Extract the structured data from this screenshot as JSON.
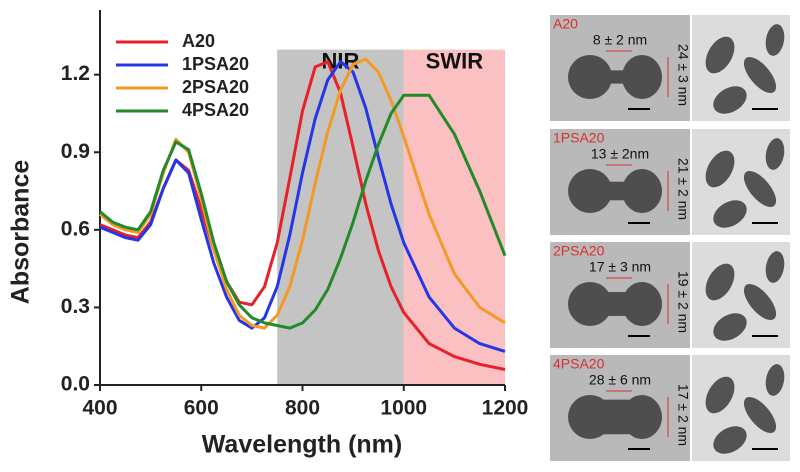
{
  "chart_data": {
    "type": "line",
    "x_label": "Wavelength (nm)",
    "y_label": "Absorbance",
    "x": [
      400,
      425,
      450,
      475,
      500,
      525,
      550,
      575,
      600,
      625,
      650,
      675,
      700,
      725,
      750,
      775,
      800,
      825,
      850,
      875,
      900,
      925,
      950,
      975,
      1000,
      1050,
      1100,
      1150,
      1200
    ],
    "series": [
      {
        "name": "A20",
        "color": "#e8202a",
        "values": [
          0.62,
          0.6,
          0.58,
          0.57,
          0.63,
          0.76,
          0.87,
          0.83,
          0.68,
          0.52,
          0.4,
          0.32,
          0.31,
          0.38,
          0.55,
          0.8,
          1.06,
          1.23,
          1.25,
          1.13,
          0.92,
          0.7,
          0.52,
          0.38,
          0.28,
          0.16,
          0.11,
          0.08,
          0.06
        ]
      },
      {
        "name": "1PSA20",
        "color": "#2436e6",
        "values": [
          0.61,
          0.59,
          0.57,
          0.56,
          0.62,
          0.76,
          0.87,
          0.82,
          0.64,
          0.47,
          0.34,
          0.25,
          0.22,
          0.26,
          0.38,
          0.58,
          0.82,
          1.03,
          1.18,
          1.25,
          1.21,
          1.07,
          0.88,
          0.7,
          0.55,
          0.34,
          0.22,
          0.16,
          0.13
        ]
      },
      {
        "name": "2PSA20",
        "color": "#f39a26",
        "values": [
          0.66,
          0.62,
          0.6,
          0.59,
          0.66,
          0.82,
          0.95,
          0.9,
          0.72,
          0.52,
          0.37,
          0.27,
          0.23,
          0.22,
          0.27,
          0.38,
          0.56,
          0.78,
          0.98,
          1.14,
          1.24,
          1.26,
          1.21,
          1.1,
          0.96,
          0.66,
          0.43,
          0.3,
          0.24
        ]
      },
      {
        "name": "4PSA20",
        "color": "#238a2a",
        "values": [
          0.67,
          0.63,
          0.61,
          0.6,
          0.67,
          0.83,
          0.94,
          0.91,
          0.74,
          0.55,
          0.4,
          0.31,
          0.26,
          0.24,
          0.23,
          0.22,
          0.24,
          0.29,
          0.37,
          0.49,
          0.63,
          0.79,
          0.93,
          1.05,
          1.12,
          1.12,
          0.97,
          0.75,
          0.5
        ]
      }
    ],
    "regions": [
      {
        "label": "NIR",
        "range": [
          750,
          1000
        ],
        "color": "#c4c4c4"
      },
      {
        "label": "SWIR",
        "range": [
          1000,
          1200
        ],
        "color": "#fbc0c2"
      }
    ],
    "xlim": [
      400,
      1200
    ],
    "xticks": [
      400,
      600,
      800,
      1000,
      1200
    ],
    "ylim": [
      0,
      1.45
    ],
    "yticks": [
      {
        "value": 0,
        "label": "0.0"
      },
      0.3,
      0.6,
      0.9,
      1.2
    ],
    "legend": "top-left",
    "panels": [
      {
        "label": "A20",
        "width": "8 ± 2 nm",
        "length": "24 ± 3 nm"
      },
      {
        "label": "1PSA20",
        "width": "13 ± 2nm",
        "length": "21 ± 2 nm"
      },
      {
        "label": "2PSA20",
        "width": "17 ± 3 nm",
        "length": "19 ± 2 nm"
      },
      {
        "label": "4PSA20",
        "width": "28 ± 6 nm",
        "length": "17 ± 2 nm"
      }
    ]
  }
}
